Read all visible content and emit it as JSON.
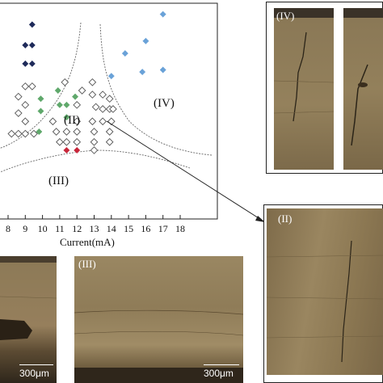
{
  "figure": {
    "x_axis_label": "Current(mA)",
    "x_ticks": [
      "8",
      "9",
      "10",
      "11",
      "12",
      "13",
      "14",
      "15",
      "16",
      "17",
      "18"
    ],
    "region_labels": [
      "(II)",
      "(III)",
      "(IV)"
    ],
    "colors": {
      "dark_navy": "#1e2a5a",
      "light_blue": "#6aa2d8",
      "green": "#5fa86b",
      "red": "#c8263a",
      "open_marker": "#ffffff"
    }
  },
  "chart_data": {
    "type": "scatter",
    "xlabel": "Current(mA)",
    "ylabel": "",
    "xlim": [
      7.8,
      18
    ],
    "series": [
      {
        "color": "#1e2a5a",
        "marker": "diamond-filled",
        "points": [
          [
            9.4,
            0.92
          ],
          [
            9.0,
            0.82
          ],
          [
            9.4,
            0.82
          ],
          [
            9.0,
            0.73
          ],
          [
            9.4,
            0.73
          ]
        ]
      },
      {
        "color": "#6aa2d8",
        "marker": "diamond-filled",
        "points": [
          [
            17.0,
            0.97
          ],
          [
            16.0,
            0.84
          ],
          [
            14.8,
            0.78
          ],
          [
            17.0,
            0.7
          ],
          [
            15.8,
            0.69
          ],
          [
            14.0,
            0.67
          ]
        ]
      },
      {
        "color": "#5fa86b",
        "marker": "diamond-filled",
        "points": [
          [
            10.9,
            0.6
          ],
          [
            11.9,
            0.57
          ],
          [
            9.9,
            0.56
          ],
          [
            11.0,
            0.53
          ],
          [
            11.4,
            0.53
          ],
          [
            9.9,
            0.5
          ],
          [
            11.4,
            0.47
          ],
          [
            9.8,
            0.4
          ]
        ]
      },
      {
        "color": "#c8263a",
        "marker": "diamond-filled",
        "points": [
          [
            11.4,
            0.31
          ],
          [
            12.0,
            0.31
          ]
        ]
      },
      {
        "color": "#ffffff",
        "marker": "diamond-open",
        "points": [
          [
            9.0,
            0.62
          ],
          [
            9.4,
            0.62
          ],
          [
            8.6,
            0.57
          ],
          [
            9.0,
            0.53
          ],
          [
            8.6,
            0.49
          ],
          [
            9.0,
            0.45
          ],
          [
            8.2,
            0.39
          ],
          [
            8.6,
            0.39
          ],
          [
            9.0,
            0.39
          ],
          [
            9.5,
            0.39
          ],
          [
            10.6,
            0.45
          ],
          [
            10.8,
            0.4
          ],
          [
            11.0,
            0.35
          ],
          [
            11.4,
            0.4
          ],
          [
            11.4,
            0.35
          ],
          [
            12.0,
            0.45
          ],
          [
            12.0,
            0.4
          ],
          [
            12.0,
            0.35
          ],
          [
            11.3,
            0.64
          ],
          [
            12.0,
            0.53
          ],
          [
            12.3,
            0.6
          ],
          [
            12.9,
            0.64
          ],
          [
            12.9,
            0.58
          ],
          [
            13.1,
            0.52
          ],
          [
            12.9,
            0.45
          ],
          [
            13.5,
            0.51
          ],
          [
            13.9,
            0.51
          ],
          [
            14.1,
            0.51
          ],
          [
            13.5,
            0.58
          ],
          [
            13.9,
            0.56
          ],
          [
            13.5,
            0.45
          ],
          [
            14.0,
            0.45
          ],
          [
            13.0,
            0.4
          ],
          [
            13.9,
            0.4
          ],
          [
            13.0,
            0.35
          ],
          [
            13.9,
            0.35
          ],
          [
            13.0,
            0.31
          ]
        ]
      }
    ]
  },
  "panels": {
    "iv": {
      "label": "(IV)"
    },
    "ii": {
      "label": "(II)"
    },
    "iii": {
      "label": "(III)",
      "scale": "300μm"
    },
    "i": {
      "scale": "300μm"
    }
  }
}
